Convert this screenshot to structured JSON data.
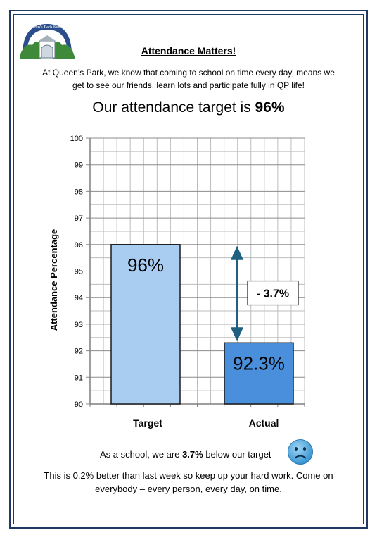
{
  "logo": {
    "text": "Queen's Park School",
    "icon": "school-crest-logo"
  },
  "heading": "Attendance Matters!",
  "intro": "At Queen’s Park, we know that coming to school on time every day, means we get to see our friends, learn lots and participate fully in QP life!",
  "target_line": {
    "prefix": "Our attendance target is ",
    "value": "96%"
  },
  "chart_data": {
    "type": "bar",
    "title": "",
    "categories": [
      "Target",
      "Actual"
    ],
    "values": [
      96,
      92.3
    ],
    "value_labels": [
      "96%",
      "92.3%"
    ],
    "ylabel": "Attendance Percentage",
    "xlabel": "",
    "ylim": [
      90,
      100
    ],
    "yticks": [
      90,
      91,
      92,
      93,
      94,
      95,
      96,
      97,
      98,
      99,
      100
    ],
    "grid": true,
    "bar_colors": [
      "#a9cdf0",
      "#4a8fdb"
    ],
    "annotation": {
      "text": "- 3.7%",
      "type": "double-arrow",
      "from": 92.3,
      "to": 96,
      "color": "#1f5f7f"
    }
  },
  "summary": {
    "prefix": "As a school, we are ",
    "value": "3.7%",
    "suffix": " below our target",
    "icon": "sad-face-icon"
  },
  "footnote": "This is 0.2% better than last week so keep up your hard work. Come on everybody – every person, every day, on time."
}
